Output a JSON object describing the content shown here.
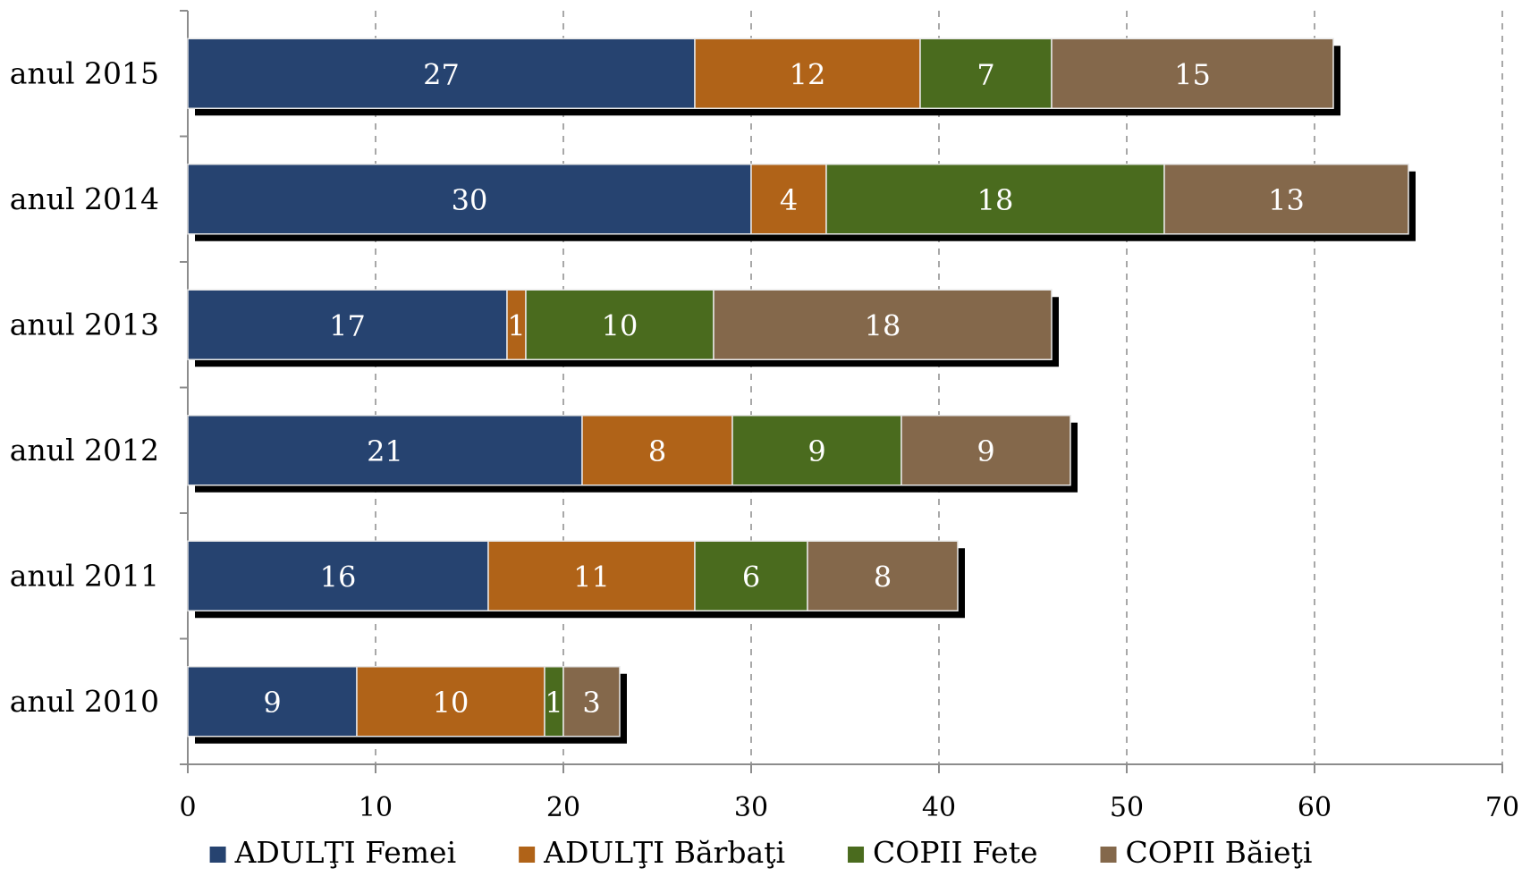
{
  "chart_data": {
    "type": "bar",
    "orientation": "horizontal",
    "stacked": true,
    "categories": [
      "anul 2015",
      "anul 2014",
      "anul 2013",
      "anul 2012",
      "anul 2011",
      "anul 2010"
    ],
    "series": [
      {
        "name": "ADULŢI Femei",
        "color": "#264370",
        "values": [
          27,
          30,
          17,
          21,
          16,
          9
        ]
      },
      {
        "name": "ADULŢI Bărbaţi",
        "color": "#b06318",
        "values": [
          12,
          4,
          1,
          8,
          11,
          10
        ]
      },
      {
        "name": "COPII Fete",
        "color": "#4a6b1e",
        "values": [
          7,
          18,
          10,
          9,
          6,
          1
        ]
      },
      {
        "name": "COPII Băieţi",
        "color": "#84684b",
        "values": [
          15,
          13,
          18,
          9,
          8,
          3
        ]
      }
    ],
    "xlim": [
      0,
      70
    ],
    "xticks": [
      0,
      10,
      20,
      30,
      40,
      50,
      60,
      70
    ],
    "grid": "vertical-dashed",
    "data_labels": true,
    "legend_position": "bottom",
    "title": "",
    "xlabel": "",
    "ylabel": ""
  }
}
